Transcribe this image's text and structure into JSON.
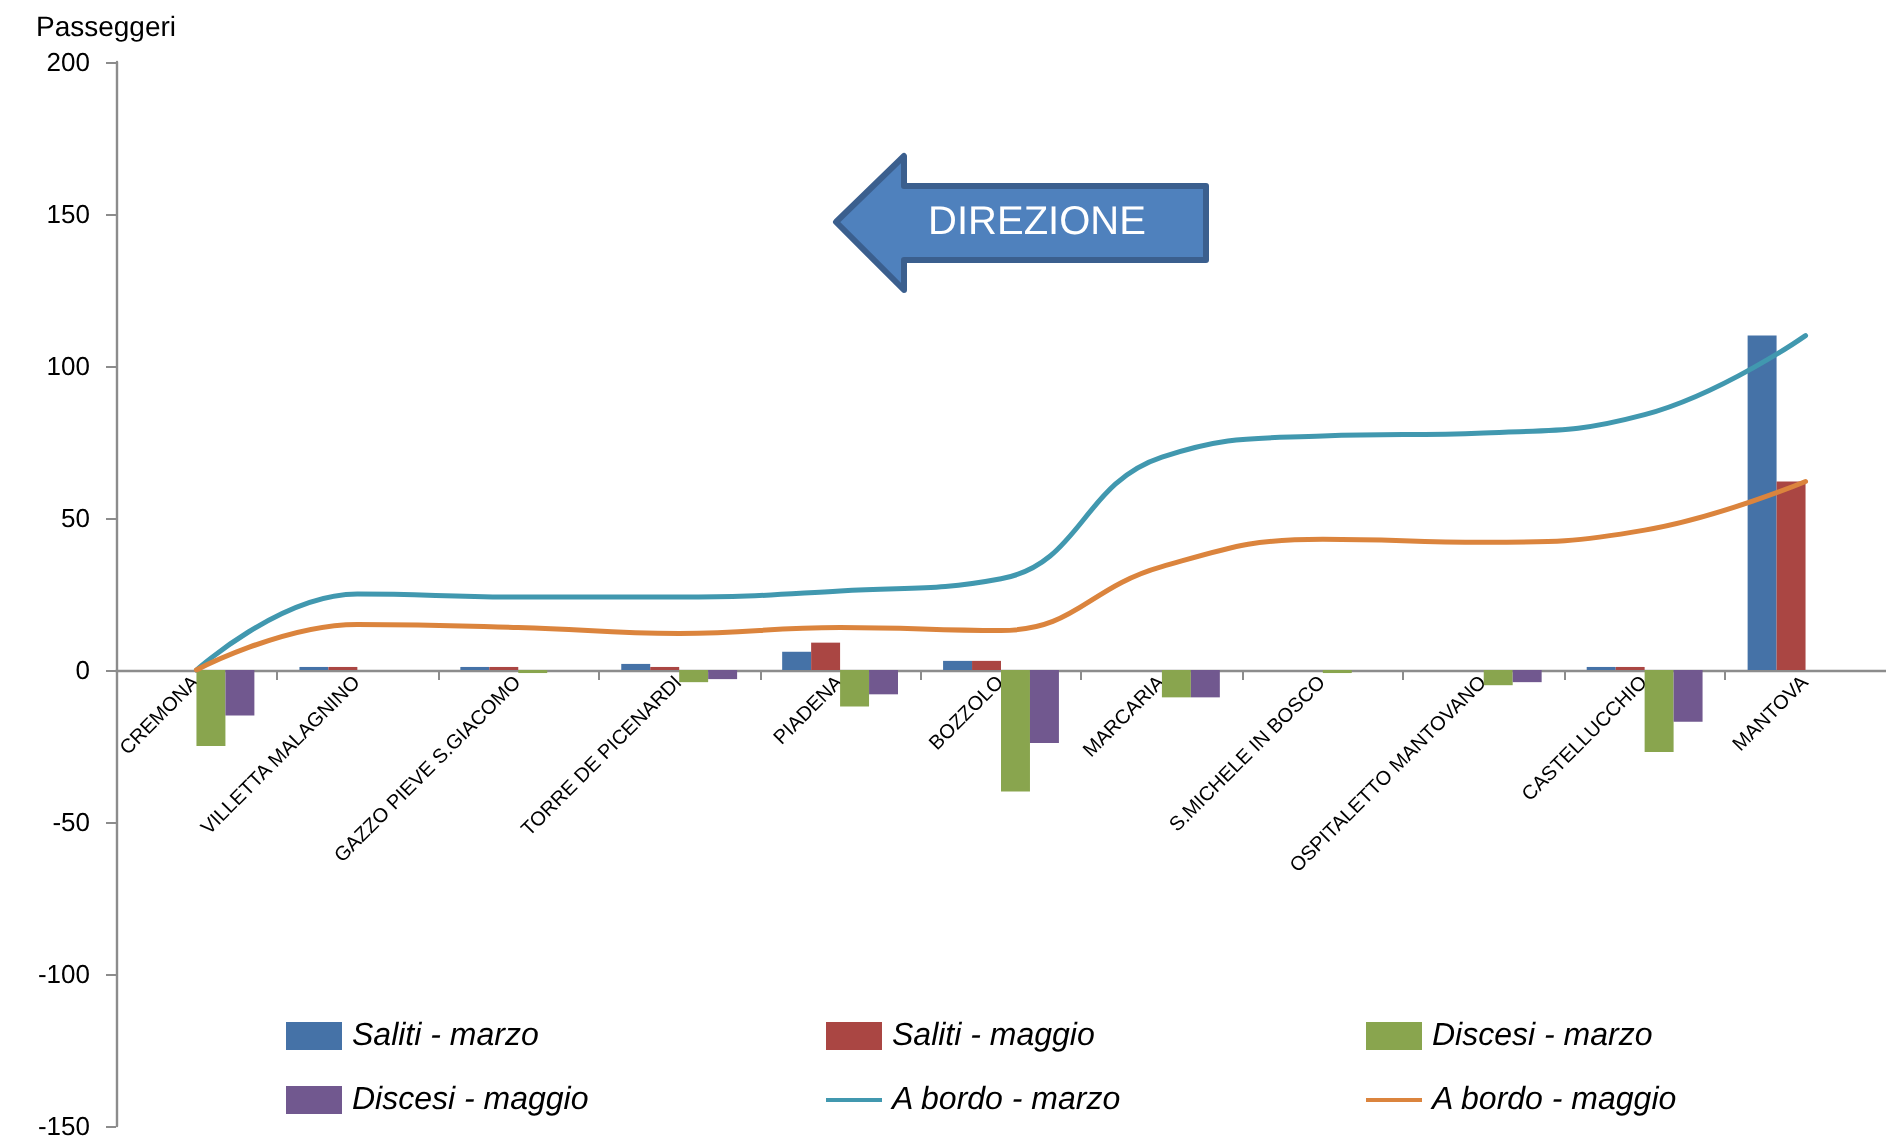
{
  "chart_data": {
    "type": "bar",
    "ylabel": "Passeggeri",
    "categories": [
      "CREMONA",
      "VILLETTA MALAGNINO",
      "GAZZO PIEVE S.GIACOMO",
      "TORRE DE PICENARDI",
      "PIADENA",
      "BOZZOLO",
      "MARCARIA",
      "S.MICHELE IN BOSCO",
      "OSPITALETTO MANTOVANO",
      "CASTELLUCCHIO",
      "MANTOVA"
    ],
    "series": [
      {
        "name": "Saliti - marzo",
        "color": "#4572a7",
        "values": [
          0,
          1,
          1,
          2,
          6,
          3,
          0,
          0,
          0,
          1,
          110
        ]
      },
      {
        "name": "Saliti - maggio",
        "color": "#aa4643",
        "values": [
          0,
          1,
          1,
          1,
          9,
          3,
          0,
          0,
          0,
          1,
          62
        ]
      },
      {
        "name": "Discesi - marzo",
        "color": "#89a54e",
        "values": [
          -25,
          0,
          -1,
          -4,
          -12,
          -40,
          -9,
          -1,
          -5,
          -27,
          0
        ]
      },
      {
        "name": "Discesi - maggio",
        "color": "#71588f",
        "values": [
          -15,
          0,
          0,
          -3,
          -8,
          -24,
          -9,
          0,
          -4,
          -17,
          0
        ]
      },
      {
        "name": "A bordo - marzo",
        "type": "line",
        "color": "#4198af",
        "values": [
          0,
          25,
          24,
          24,
          26,
          30,
          70,
          77,
          78,
          84,
          110
        ]
      },
      {
        "name": "A bordo - maggio",
        "type": "line",
        "color": "#db843d",
        "values": [
          0,
          15,
          14,
          12,
          14,
          13,
          34,
          43,
          42,
          46,
          62
        ]
      }
    ],
    "ylim": [
      -150,
      200
    ],
    "yticks": [
      -150,
      -100,
      -50,
      0,
      50,
      100,
      150,
      200
    ],
    "legend": "bottom",
    "annotations": [
      "DIREZIONE"
    ]
  }
}
